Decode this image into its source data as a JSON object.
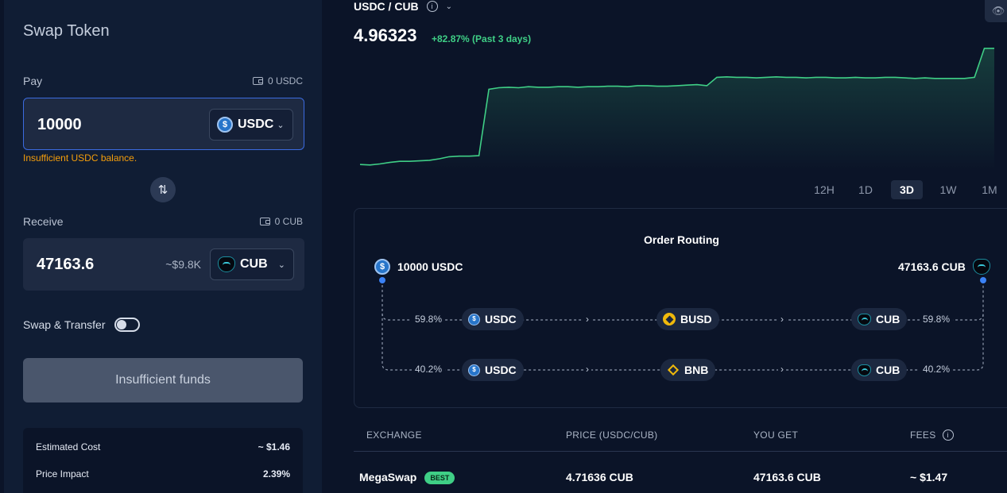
{
  "swap": {
    "title": "Swap Token",
    "pay": {
      "label": "Pay",
      "balance": "0 USDC",
      "amount": "10000",
      "token": "USDC",
      "error": "Insufficient USDC balance."
    },
    "receive": {
      "label": "Receive",
      "balance": "0 CUB",
      "amount": "47163.6",
      "usd_estimate": "~$9.8K",
      "token": "CUB"
    },
    "swap_transfer_label": "Swap & Transfer",
    "swap_transfer_enabled": false,
    "action_button": "Insufficient funds",
    "costs": [
      {
        "label": "Estimated Cost",
        "value": "~ $1.46"
      },
      {
        "label": "Price Impact",
        "value": "2.39%"
      }
    ]
  },
  "chart": {
    "pair": "USDC / CUB",
    "price": "4.96323",
    "change": "+82.87% (Past 3 days)",
    "timeframes": [
      "12H",
      "1D",
      "3D",
      "1W",
      "1M"
    ],
    "active_timeframe": "3D",
    "line_color": "#3fcf86"
  },
  "chart_data": {
    "type": "line",
    "title": "USDC / CUB",
    "range": "Past 3 days",
    "series": [
      {
        "values": [
          2.72,
          2.71,
          2.73,
          2.76,
          2.78,
          2.78,
          2.79,
          2.8,
          2.83,
          2.87,
          2.88,
          2.88,
          2.89,
          4.17,
          4.2,
          4.21,
          4.2,
          4.22,
          4.21,
          4.21,
          4.22,
          4.22,
          4.21,
          4.22,
          4.22,
          4.23,
          4.23,
          4.22,
          4.24,
          4.24,
          4.23,
          4.23,
          4.24,
          4.25,
          4.26,
          4.24,
          4.4,
          4.41,
          4.4,
          4.4,
          4.39,
          4.4,
          4.41,
          4.4,
          4.4,
          4.39,
          4.4,
          4.4,
          4.39,
          4.39,
          4.4,
          4.39,
          4.39,
          4.4,
          4.4,
          4.39,
          4.38,
          4.39,
          4.38,
          4.38,
          4.38,
          4.38,
          4.4,
          4.96,
          4.96
        ]
      }
    ],
    "ylim": [
      2.6,
      5.05
    ]
  },
  "routing": {
    "title": "Order Routing",
    "from": "10000 USDC",
    "to": "47163.6 CUB",
    "routes": [
      {
        "share": "59.8%",
        "hops": [
          "USDC",
          "BUSD",
          "CUB"
        ]
      },
      {
        "share": "40.2%",
        "hops": [
          "USDC",
          "BNB",
          "CUB"
        ]
      }
    ]
  },
  "table": {
    "headers": [
      "EXCHANGE",
      "PRICE (USDC/CUB)",
      "YOU GET",
      "FEES"
    ],
    "rows": [
      {
        "exchange": "MegaSwap",
        "badge": "BEST",
        "price": "4.71636 CUB",
        "you_get": "47163.6 CUB",
        "fees": "~ $1.47"
      }
    ]
  }
}
